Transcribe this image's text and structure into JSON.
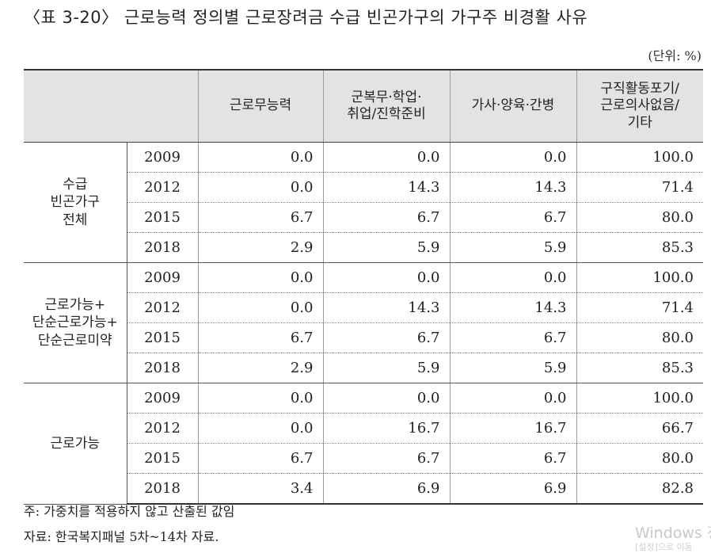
{
  "title": "〈표 3-20〉 근로능력 정의별 근로장려금 수급 빈곤가구의 가구주 비경활 사유",
  "unit": "(단위: %)",
  "headers": [
    "",
    "근로무능력",
    "군복무·학업·\n취업/진학준비",
    "가사·양육·간병",
    "구직활동포기/\n근로의사없음/\n기타"
  ],
  "groups": [
    {
      "label": "수급\n빈곤가구\n전체",
      "rows": [
        {
          "year": "2009",
          "values": [
            "0.0",
            "0.0",
            "0.0",
            "100.0"
          ]
        },
        {
          "year": "2012",
          "values": [
            "0.0",
            "14.3",
            "14.3",
            "71.4"
          ]
        },
        {
          "year": "2015",
          "values": [
            "6.7",
            "6.7",
            "6.7",
            "80.0"
          ]
        },
        {
          "year": "2018",
          "values": [
            "2.9",
            "5.9",
            "5.9",
            "85.3"
          ]
        }
      ]
    },
    {
      "label": "근로가능+\n단순근로가능+\n단순근로미약",
      "rows": [
        {
          "year": "2009",
          "values": [
            "0.0",
            "0.0",
            "0.0",
            "100.0"
          ]
        },
        {
          "year": "2012",
          "values": [
            "0.0",
            "14.3",
            "14.3",
            "71.4"
          ]
        },
        {
          "year": "2015",
          "values": [
            "6.7",
            "6.7",
            "6.7",
            "80.0"
          ]
        },
        {
          "year": "2018",
          "values": [
            "2.9",
            "5.9",
            "5.9",
            "85.3"
          ]
        }
      ]
    },
    {
      "label": "근로가능",
      "rows": [
        {
          "year": "2009",
          "values": [
            "0.0",
            "0.0",
            "0.0",
            "100.0"
          ]
        },
        {
          "year": "2012",
          "values": [
            "0.0",
            "16.7",
            "16.7",
            "66.7"
          ]
        },
        {
          "year": "2015",
          "values": [
            "6.7",
            "6.7",
            "6.7",
            "80.0"
          ]
        },
        {
          "year": "2018",
          "values": [
            "3.4",
            "6.9",
            "6.9",
            "82.8"
          ]
        }
      ]
    }
  ],
  "notes": {
    "note1": "주: 가중치를 적용하지 않고 산출된 값임",
    "note2": "자료: 한국복지패널 5차~14차 자료."
  },
  "watermark": {
    "line1": "Windows 정",
    "line2": "[설정]으로 이동"
  }
}
